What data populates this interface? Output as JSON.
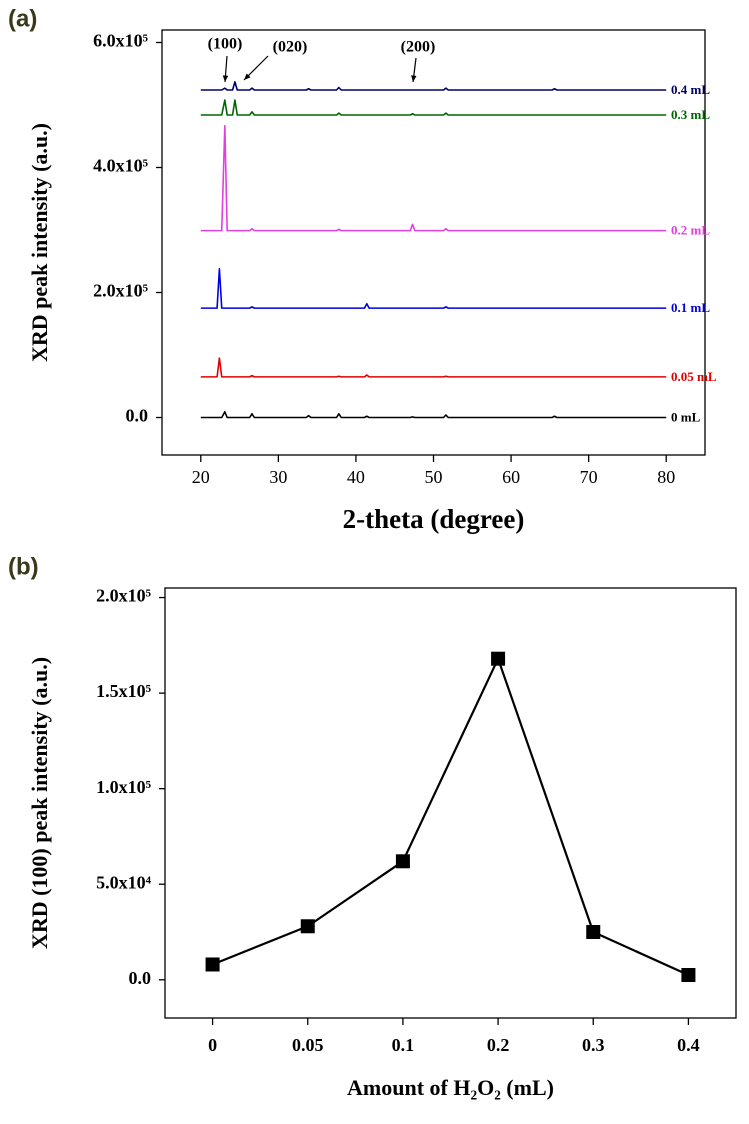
{
  "chart_data": [
    {
      "type": "line",
      "panel_label": "(a)",
      "x_label": "2-theta (degree)",
      "y_label": "XRD peak intensity (a.u.)",
      "xlim": [
        15,
        85
      ],
      "xticks": [
        20,
        30,
        40,
        50,
        60,
        70,
        80
      ],
      "ylim": [
        -60000,
        620000
      ],
      "yticks": [
        {
          "value": 0,
          "label": "0.0"
        },
        {
          "value": 200000,
          "label": "2.0x10⁵"
        },
        {
          "value": 400000,
          "label": "4.0x10⁵"
        },
        {
          "value": 600000,
          "label": "6.0x10⁵"
        }
      ],
      "annotations": [
        "(100)",
        "(020)",
        "(200)"
      ],
      "x": [
        20,
        22.1,
        22.4,
        22.7,
        23.1,
        23.4,
        24.1,
        24.4,
        24.7,
        26.3,
        26.6,
        26.9,
        33.6,
        33.9,
        34.2,
        37.5,
        37.8,
        38.1,
        41.1,
        41.4,
        41.7,
        47,
        47.3,
        47.6,
        51.3,
        51.6,
        51.9,
        65.3,
        65.6,
        65.9,
        80
      ],
      "series": [
        {
          "name": "0 mL",
          "color": "#000000",
          "values": [
            0,
            0,
            0,
            0,
            9000,
            0,
            0,
            0,
            0,
            0,
            6000,
            0,
            0,
            3000,
            0,
            0,
            6000,
            0,
            0,
            2000,
            0,
            0,
            1000,
            0,
            0,
            4000,
            0,
            0,
            2000,
            0,
            0
          ]
        },
        {
          "name": "0.05 mL",
          "color": "#e00000",
          "values": [
            65000,
            65000,
            95000,
            65000,
            65000,
            65000,
            65000,
            65000,
            65000,
            65000,
            67000,
            65000,
            65000,
            65000,
            65000,
            65000,
            66000,
            65000,
            65000,
            68000,
            65000,
            65000,
            65000,
            65000,
            65000,
            66000,
            65000,
            65000,
            65000,
            65000,
            65000
          ]
        },
        {
          "name": "0.1 mL",
          "color": "#0000e0",
          "values": [
            175000,
            175000,
            238000,
            175000,
            175000,
            175000,
            175000,
            175000,
            175000,
            175000,
            177000,
            175000,
            175000,
            175000,
            175000,
            175000,
            175000,
            175000,
            175000,
            182000,
            175000,
            175000,
            175000,
            175000,
            175000,
            177000,
            175000,
            175000,
            175000,
            175000,
            175000
          ]
        },
        {
          "name": "0.2 mL",
          "color": "#e040e0",
          "values": [
            299000,
            299000,
            299000,
            299000,
            467000,
            299000,
            299000,
            299000,
            299000,
            299000,
            302000,
            299000,
            299000,
            299000,
            299000,
            299000,
            301000,
            299000,
            299000,
            299000,
            299000,
            299000,
            309000,
            299000,
            299000,
            302000,
            299000,
            299000,
            299000,
            299000,
            299000
          ]
        },
        {
          "name": "0.3 mL",
          "color": "#006600",
          "values": [
            484000,
            484000,
            484000,
            484000,
            508000,
            484000,
            484000,
            508000,
            484000,
            484000,
            489000,
            484000,
            484000,
            484000,
            484000,
            484000,
            487000,
            484000,
            484000,
            484000,
            484000,
            484000,
            486000,
            484000,
            484000,
            487000,
            484000,
            484000,
            484000,
            484000,
            484000
          ]
        },
        {
          "name": "0.4 mL",
          "color": "#000066",
          "values": [
            524000,
            524000,
            524000,
            524000,
            527000,
            524000,
            524000,
            537000,
            524000,
            524000,
            527000,
            524000,
            524000,
            526000,
            524000,
            524000,
            528000,
            524000,
            524000,
            524000,
            524000,
            524000,
            524000,
            524000,
            524000,
            527000,
            524000,
            524000,
            526000,
            524000,
            524000
          ]
        }
      ]
    },
    {
      "type": "line",
      "panel_label": "(b)",
      "x_label": "Amount of H₂O₂ (mL)",
      "y_label": "XRD (100) peak intensity (a.u.)",
      "categories": [
        "0",
        "0.05",
        "0.1",
        "0.2",
        "0.3",
        "0.4"
      ],
      "values": [
        8000,
        28000,
        62000,
        168000,
        25000,
        2500
      ],
      "color": "#000000",
      "marker": "square",
      "ylim": [
        -20000,
        205000
      ],
      "yticks": [
        {
          "value": 0,
          "label": "0.0"
        },
        {
          "value": 50000,
          "label": "5.0x10⁴"
        },
        {
          "value": 100000,
          "label": "1.0x10⁵"
        },
        {
          "value": 150000,
          "label": "1.5x10⁵"
        },
        {
          "value": 200000,
          "label": "2.0x10⁵"
        }
      ]
    }
  ]
}
